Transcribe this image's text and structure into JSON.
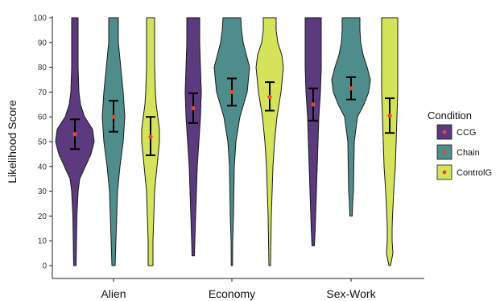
{
  "chart_data": {
    "type": "violin",
    "ylabel": "Likelihood Score",
    "xlabel": "",
    "ylim": [
      0,
      100
    ],
    "yticks": [
      0,
      10,
      20,
      30,
      40,
      50,
      60,
      70,
      80,
      90,
      100
    ],
    "grid": false,
    "legend_position": "right",
    "legend": {
      "title": "Condition"
    },
    "categories": [
      "Alien",
      "Economy",
      "Sex-Work"
    ],
    "series": [
      {
        "name": "CCG",
        "color": "#5b3a7e",
        "points": [
          {
            "category": "Alien",
            "mean": 53,
            "ci_low": 47,
            "ci_high": 59,
            "min": 0,
            "max": 100
          },
          {
            "category": "Economy",
            "mean": 63.5,
            "ci_low": 57.5,
            "ci_high": 69.5,
            "min": 4,
            "max": 100
          },
          {
            "category": "Sex-Work",
            "mean": 65,
            "ci_low": 58.5,
            "ci_high": 71.5,
            "min": 8,
            "max": 100
          }
        ]
      },
      {
        "name": "Chain",
        "color": "#4e8d8c",
        "points": [
          {
            "category": "Alien",
            "mean": 60,
            "ci_low": 54,
            "ci_high": 66.5,
            "min": 0,
            "max": 100
          },
          {
            "category": "Economy",
            "mean": 70,
            "ci_low": 64.5,
            "ci_high": 75.5,
            "min": 0,
            "max": 100
          },
          {
            "category": "Sex-Work",
            "mean": 71.5,
            "ci_low": 67,
            "ci_high": 76,
            "min": 20,
            "max": 100
          }
        ]
      },
      {
        "name": "ControlG",
        "color": "#d4e35a",
        "points": [
          {
            "category": "Alien",
            "mean": 52,
            "ci_low": 44.5,
            "ci_high": 60,
            "min": 0,
            "max": 100
          },
          {
            "category": "Economy",
            "mean": 68,
            "ci_low": 62.5,
            "ci_high": 74,
            "min": 0,
            "max": 100
          },
          {
            "category": "Sex-Work",
            "mean": 60.5,
            "ci_low": 53.5,
            "ci_high": 67.5,
            "min": 0,
            "max": 100
          }
        ]
      }
    ],
    "mean_point_color": "#e8462f"
  }
}
